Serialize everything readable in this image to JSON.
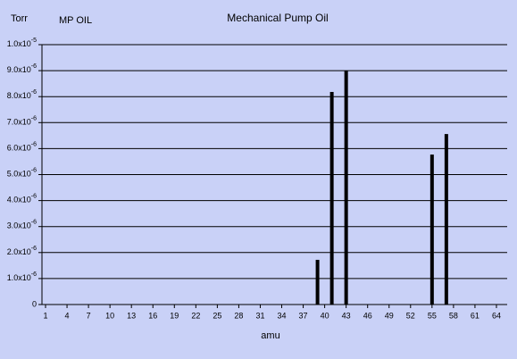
{
  "chart_data": {
    "type": "bar",
    "title": "Mechanical Pump Oil",
    "subtitle": "MP OIL",
    "y_label": "Torr",
    "x_label": "amu",
    "x": [
      39,
      41,
      43,
      55,
      57
    ],
    "values": [
      1.72e-06,
      8.18e-06,
      9e-06,
      5.77e-06,
      6.56e-06
    ],
    "color": "#000000",
    "xlim": [
      0.5,
      65.5
    ],
    "xticks": [
      1,
      4,
      7,
      10,
      13,
      16,
      19,
      22,
      25,
      28,
      31,
      34,
      37,
      40,
      43,
      46,
      49,
      52,
      55,
      58,
      61,
      64
    ],
    "ylim": [
      0,
      1e-05
    ],
    "yticks": [
      0,
      {
        "value": 1e-06,
        "label": "1.0x10",
        "exponent": "-6"
      },
      {
        "value": 2e-06,
        "label": "2.0x10",
        "exponent": "-6"
      },
      {
        "value": 3e-06,
        "label": "3.0x10",
        "exponent": "-6"
      },
      {
        "value": 4e-06,
        "label": "4.0x10",
        "exponent": "-6"
      },
      {
        "value": 5e-06,
        "label": "5.0x10",
        "exponent": "-6"
      },
      {
        "value": 6e-06,
        "label": "6.0x10",
        "exponent": "-6"
      },
      {
        "value": 7e-06,
        "label": "7.0x10",
        "exponent": "-6"
      },
      {
        "value": 8e-06,
        "label": "8.0x10",
        "exponent": "-6"
      },
      {
        "value": 9e-06,
        "label": "9.0x10",
        "exponent": "-6"
      },
      {
        "value": 1e-05,
        "label": "1.0x10",
        "exponent": "-5"
      }
    ],
    "grid": true
  }
}
